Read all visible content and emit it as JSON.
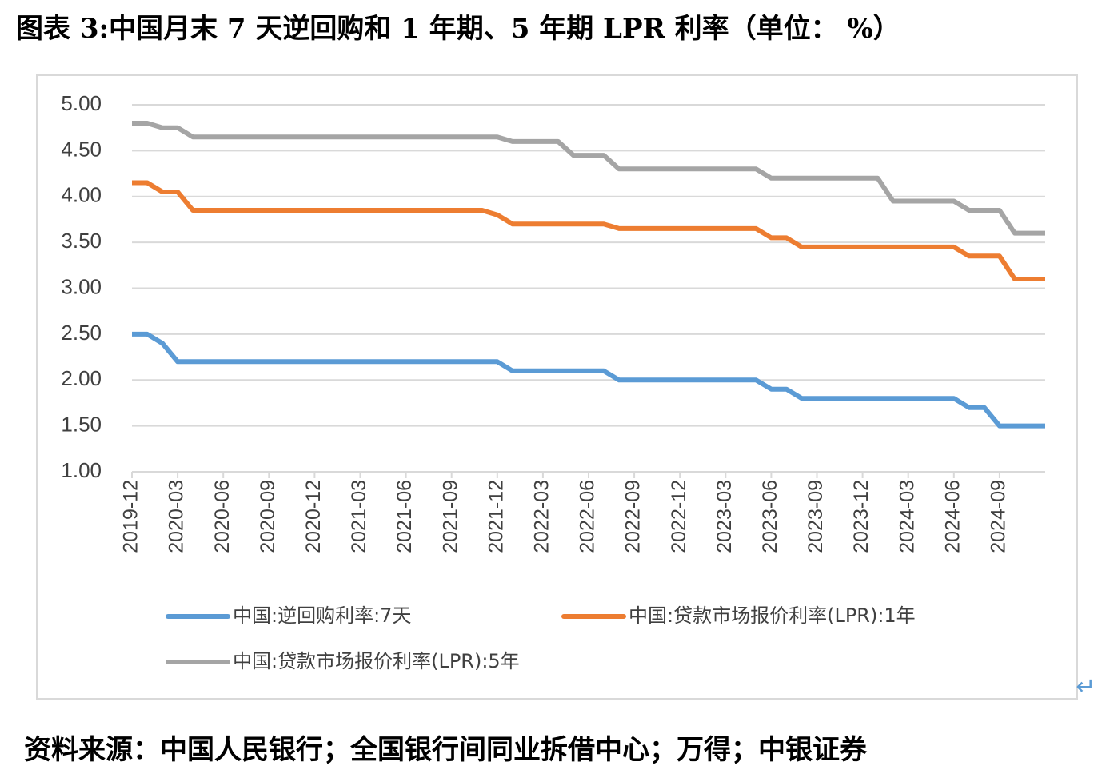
{
  "chart_data": {
    "type": "line",
    "title": "图表 3:中国月末 7 天逆回购和 1 年期、5 年期 LPR 利率（单位：  %）",
    "note": "资料来源：中国人民银行；全国银行间同业拆借中心；万得；中银证券",
    "mark": "↵",
    "categories": [
      "2019-12",
      null,
      null,
      "2020-03",
      null,
      null,
      "2020-06",
      null,
      null,
      "2020-09",
      null,
      null,
      "2020-12",
      null,
      null,
      "2021-03",
      null,
      null,
      "2021-06",
      null,
      null,
      "2021-09",
      null,
      null,
      "2021-12",
      null,
      null,
      "2022-03",
      null,
      null,
      "2022-06",
      null,
      null,
      "2022-09",
      null,
      null,
      "2022-12",
      null,
      null,
      "2023-03",
      null,
      null,
      "2023-06",
      null,
      null,
      "2023-09",
      null,
      null,
      "2023-12",
      null,
      null,
      "2024-03",
      null,
      null,
      "2024-06",
      null,
      null,
      "2024-09",
      null,
      null,
      null
    ],
    "series": [
      {
        "name": "中国:逆回购利率:7天",
        "color": "#5b9bd5",
        "values": [
          2.5,
          2.5,
          2.4,
          2.2,
          2.2,
          2.2,
          2.2,
          2.2,
          2.2,
          2.2,
          2.2,
          2.2,
          2.2,
          2.2,
          2.2,
          2.2,
          2.2,
          2.2,
          2.2,
          2.2,
          2.2,
          2.2,
          2.2,
          2.2,
          2.2,
          2.1,
          2.1,
          2.1,
          2.1,
          2.1,
          2.1,
          2.1,
          2.0,
          2.0,
          2.0,
          2.0,
          2.0,
          2.0,
          2.0,
          2.0,
          2.0,
          2.0,
          1.9,
          1.9,
          1.8,
          1.8,
          1.8,
          1.8,
          1.8,
          1.8,
          1.8,
          1.8,
          1.8,
          1.8,
          1.8,
          1.7,
          1.7,
          1.5,
          1.5,
          1.5,
          1.5
        ]
      },
      {
        "name": "中国:贷款市场报价利率(LPR):1年",
        "color": "#ed7d31",
        "values": [
          4.15,
          4.15,
          4.05,
          4.05,
          3.85,
          3.85,
          3.85,
          3.85,
          3.85,
          3.85,
          3.85,
          3.85,
          3.85,
          3.85,
          3.85,
          3.85,
          3.85,
          3.85,
          3.85,
          3.85,
          3.85,
          3.85,
          3.85,
          3.85,
          3.8,
          3.7,
          3.7,
          3.7,
          3.7,
          3.7,
          3.7,
          3.7,
          3.65,
          3.65,
          3.65,
          3.65,
          3.65,
          3.65,
          3.65,
          3.65,
          3.65,
          3.65,
          3.55,
          3.55,
          3.45,
          3.45,
          3.45,
          3.45,
          3.45,
          3.45,
          3.45,
          3.45,
          3.45,
          3.45,
          3.45,
          3.35,
          3.35,
          3.35,
          3.1,
          3.1,
          3.1
        ]
      },
      {
        "name": "中国:贷款市场报价利率(LPR):5年",
        "color": "#a5a5a5",
        "values": [
          4.8,
          4.8,
          4.75,
          4.75,
          4.65,
          4.65,
          4.65,
          4.65,
          4.65,
          4.65,
          4.65,
          4.65,
          4.65,
          4.65,
          4.65,
          4.65,
          4.65,
          4.65,
          4.65,
          4.65,
          4.65,
          4.65,
          4.65,
          4.65,
          4.65,
          4.6,
          4.6,
          4.6,
          4.6,
          4.45,
          4.45,
          4.45,
          4.3,
          4.3,
          4.3,
          4.3,
          4.3,
          4.3,
          4.3,
          4.3,
          4.3,
          4.3,
          4.2,
          4.2,
          4.2,
          4.2,
          4.2,
          4.2,
          4.2,
          4.2,
          3.95,
          3.95,
          3.95,
          3.95,
          3.95,
          3.85,
          3.85,
          3.85,
          3.6,
          3.6,
          3.6
        ]
      }
    ],
    "ylim": [
      1,
      5
    ],
    "yticks": [
      {
        "value": 1,
        "label": "1.00"
      },
      {
        "value": 1.5,
        "label": "1.50"
      },
      {
        "value": 2,
        "label": "2.00"
      },
      {
        "value": 2.5,
        "label": "2.50"
      },
      {
        "value": 3,
        "label": "3.00"
      },
      {
        "value": 3.5,
        "label": "3.50"
      },
      {
        "value": 4,
        "label": "4.00"
      },
      {
        "value": 4.5,
        "label": "4.50"
      },
      {
        "value": 5,
        "label": "5.00"
      }
    ],
    "grid": true
  }
}
